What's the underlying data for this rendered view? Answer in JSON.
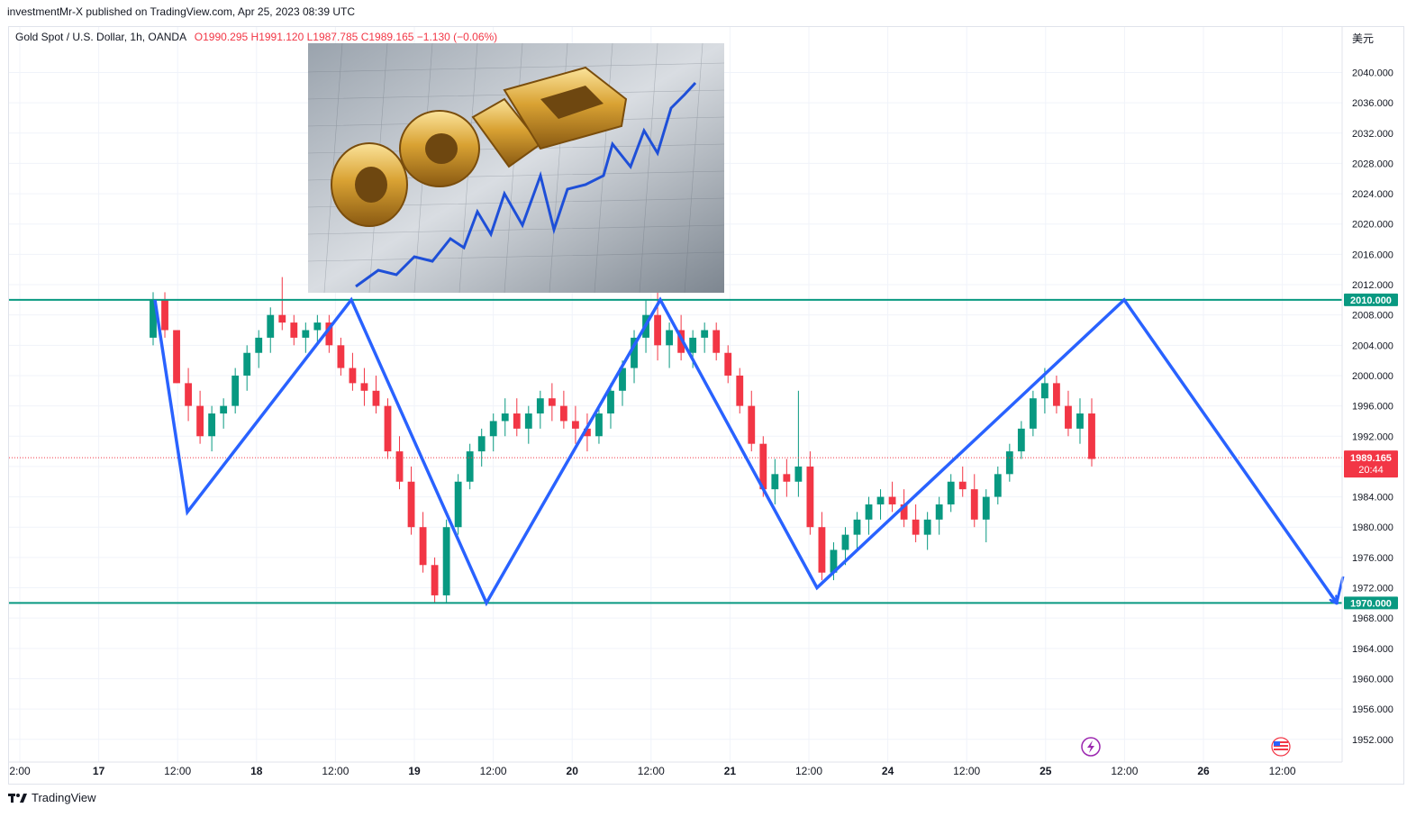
{
  "header": {
    "published": "investmentMr-X published on TradingView.com, Apr 25, 2023 08:39 UTC"
  },
  "legend": {
    "symbol": "Gold Spot / U.S. Dollar, 1h, OANDA",
    "open_label": "O",
    "open": "1990.295",
    "high_label": "H",
    "high": "1991.120",
    "low_label": "L",
    "low": "1987.785",
    "close_label": "C",
    "close": "1989.165",
    "change": "−1.130 (−0.06%)"
  },
  "currency_label": "美元",
  "footer": {
    "brand": "TradingView",
    "logo_icon": "tradingview-logo-icon"
  },
  "colors": {
    "up": "#089981",
    "down": "#f23645",
    "pattern": "#2962ff",
    "level": "#089981",
    "price_line": "#f23645"
  },
  "chart_data": {
    "type": "candlestick",
    "symbol": "XAUUSD",
    "interval": "1h",
    "ylim": [
      1949,
      2046
    ],
    "y_ticks": [
      "1952.000",
      "1956.000",
      "1960.000",
      "1964.000",
      "1968.000",
      "1972.000",
      "1976.000",
      "1980.000",
      "1984.000",
      "1988.000",
      "1992.000",
      "1996.000",
      "2000.000",
      "2004.000",
      "2008.000",
      "2012.000",
      "2016.000",
      "2020.000",
      "2024.000",
      "2028.000",
      "2032.000",
      "2036.000",
      "2040.000"
    ],
    "x_ticks": [
      {
        "label": "2:00",
        "major": false
      },
      {
        "label": "17",
        "major": true
      },
      {
        "label": "12:00",
        "major": false
      },
      {
        "label": "18",
        "major": true
      },
      {
        "label": "12:00",
        "major": false
      },
      {
        "label": "19",
        "major": true
      },
      {
        "label": "12:00",
        "major": false
      },
      {
        "label": "20",
        "major": true
      },
      {
        "label": "12:00",
        "major": false
      },
      {
        "label": "21",
        "major": true
      },
      {
        "label": "12:00",
        "major": false
      },
      {
        "label": "24",
        "major": true
      },
      {
        "label": "12:00",
        "major": false
      },
      {
        "label": "25",
        "major": true
      },
      {
        "label": "12:00",
        "major": false
      },
      {
        "label": "26",
        "major": true
      },
      {
        "label": "12:00",
        "major": false
      }
    ],
    "horizontal_levels": [
      {
        "price": 2010.0,
        "label": "2010.000"
      },
      {
        "price": 1970.0,
        "label": "1970.000"
      }
    ],
    "last_price": {
      "price": 1989.165,
      "label": "1989.165",
      "countdown": "20:44"
    },
    "pattern_points": [
      2010,
      1982,
      2010,
      1970,
      2010,
      1972,
      2010,
      1970
    ],
    "candles": [
      [
        2005,
        2011,
        2004,
        2010
      ],
      [
        2010,
        2011,
        2005,
        2006
      ],
      [
        2006,
        2006,
        1999,
        1999
      ],
      [
        1999,
        2001,
        1994,
        1996
      ],
      [
        1996,
        1998,
        1991,
        1992
      ],
      [
        1992,
        1996,
        1990,
        1995
      ],
      [
        1995,
        1997,
        1993,
        1996
      ],
      [
        1996,
        2001,
        1995,
        2000
      ],
      [
        2000,
        2004,
        1998,
        2003
      ],
      [
        2003,
        2006,
        2001,
        2005
      ],
      [
        2005,
        2009,
        2003,
        2008
      ],
      [
        2008,
        2013,
        2006,
        2007
      ],
      [
        2007,
        2008,
        2004,
        2005
      ],
      [
        2005,
        2007,
        2003,
        2006
      ],
      [
        2006,
        2008,
        2004,
        2007
      ],
      [
        2007,
        2008,
        2003,
        2004
      ],
      [
        2004,
        2005,
        2000,
        2001
      ],
      [
        2001,
        2003,
        1998,
        1999
      ],
      [
        1999,
        2001,
        1996,
        1998
      ],
      [
        1998,
        2000,
        1995,
        1996
      ],
      [
        1996,
        1997,
        1989,
        1990
      ],
      [
        1990,
        1992,
        1985,
        1986
      ],
      [
        1986,
        1988,
        1979,
        1980
      ],
      [
        1980,
        1982,
        1974,
        1975
      ],
      [
        1975,
        1976,
        1970,
        1971
      ],
      [
        1971,
        1981,
        1970,
        1980
      ],
      [
        1980,
        1987,
        1979,
        1986
      ],
      [
        1986,
        1991,
        1985,
        1990
      ],
      [
        1990,
        1993,
        1988,
        1992
      ],
      [
        1992,
        1995,
        1990,
        1994
      ],
      [
        1994,
        1997,
        1992,
        1995
      ],
      [
        1995,
        1997,
        1992,
        1993
      ],
      [
        1993,
        1996,
        1991,
        1995
      ],
      [
        1995,
        1998,
        1993,
        1997
      ],
      [
        1997,
        1999,
        1994,
        1996
      ],
      [
        1996,
        1998,
        1993,
        1994
      ],
      [
        1994,
        1996,
        1991,
        1993
      ],
      [
        1993,
        1995,
        1990,
        1992
      ],
      [
        1992,
        1996,
        1991,
        1995
      ],
      [
        1995,
        1999,
        1993,
        1998
      ],
      [
        1998,
        2002,
        1996,
        2001
      ],
      [
        2001,
        2006,
        1999,
        2005
      ],
      [
        2005,
        2010,
        2003,
        2008
      ],
      [
        2008,
        2012,
        2002,
        2004
      ],
      [
        2004,
        2007,
        2001,
        2006
      ],
      [
        2006,
        2008,
        2002,
        2003
      ],
      [
        2003,
        2006,
        2001,
        2005
      ],
      [
        2005,
        2007,
        2003,
        2006
      ],
      [
        2006,
        2007,
        2002,
        2003
      ],
      [
        2003,
        2004,
        1999,
        2000
      ],
      [
        2000,
        2001,
        1995,
        1996
      ],
      [
        1996,
        1998,
        1990,
        1991
      ],
      [
        1991,
        1992,
        1984,
        1985
      ],
      [
        1985,
        1989,
        1983,
        1987
      ],
      [
        1987,
        1989,
        1984,
        1986
      ],
      [
        1986,
        1998,
        1984,
        1988
      ],
      [
        1988,
        1990,
        1979,
        1980
      ],
      [
        1980,
        1982,
        1973,
        1974
      ],
      [
        1974,
        1978,
        1973,
        1977
      ],
      [
        1977,
        1980,
        1975,
        1979
      ],
      [
        1979,
        1982,
        1977,
        1981
      ],
      [
        1981,
        1984,
        1979,
        1983
      ],
      [
        1983,
        1985,
        1981,
        1984
      ],
      [
        1984,
        1986,
        1982,
        1983
      ],
      [
        1983,
        1985,
        1980,
        1981
      ],
      [
        1981,
        1983,
        1978,
        1979
      ],
      [
        1979,
        1982,
        1977,
        1981
      ],
      [
        1981,
        1984,
        1979,
        1983
      ],
      [
        1983,
        1987,
        1982,
        1986
      ],
      [
        1986,
        1988,
        1984,
        1985
      ],
      [
        1985,
        1987,
        1980,
        1981
      ],
      [
        1981,
        1985,
        1978,
        1984
      ],
      [
        1984,
        1988,
        1983,
        1987
      ],
      [
        1987,
        1991,
        1986,
        1990
      ],
      [
        1990,
        1994,
        1989,
        1993
      ],
      [
        1993,
        1998,
        1992,
        1997
      ],
      [
        1997,
        2001,
        1995,
        1999
      ],
      [
        1999,
        2000,
        1995,
        1996
      ],
      [
        1996,
        1998,
        1992,
        1993
      ],
      [
        1993,
        1997,
        1991,
        1995
      ],
      [
        1995,
        1997,
        1988,
        1989
      ]
    ]
  }
}
